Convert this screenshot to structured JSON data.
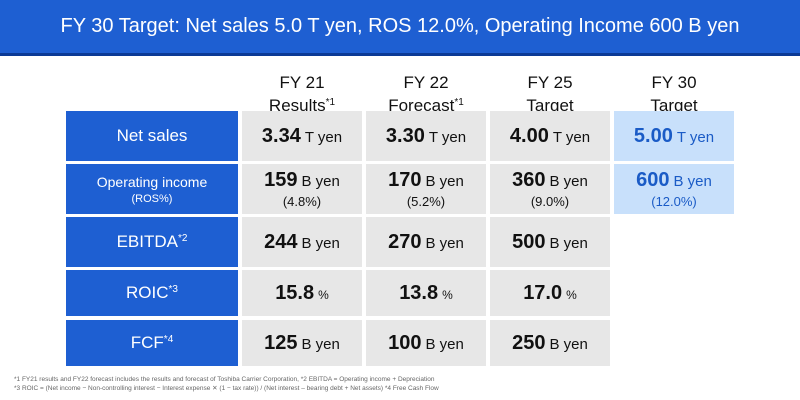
{
  "banner": "FY 30 Target: Net sales 5.0 T yen, ROS 12.0%, Operating Income 600 B yen",
  "columns": [
    {
      "line1": "FY 21",
      "line2": "Results",
      "mark": "*1"
    },
    {
      "line1": "FY 22",
      "line2": "Forecast",
      "mark": "*1"
    },
    {
      "line1": "FY 25",
      "line2": "Target",
      "mark": ""
    },
    {
      "line1": "FY 30",
      "line2": "Target",
      "mark": ""
    }
  ],
  "rows": [
    {
      "label": "Net sales",
      "mark": "",
      "sub": "",
      "cells": [
        {
          "value": "3.34",
          "unit": "T yen",
          "paren": ""
        },
        {
          "value": "3.30",
          "unit": "T yen",
          "paren": ""
        },
        {
          "value": "4.00",
          "unit": "T yen",
          "paren": ""
        },
        {
          "value": "5.00",
          "unit": "T yen",
          "paren": ""
        }
      ]
    },
    {
      "label": "Operating income",
      "mark": "",
      "sub": "(ROS%)",
      "cells": [
        {
          "value": "159",
          "unit": "B yen",
          "paren": "(4.8%)"
        },
        {
          "value": "170",
          "unit": "B yen",
          "paren": "(5.2%)"
        },
        {
          "value": "360",
          "unit": "B yen",
          "paren": "(9.0%)"
        },
        {
          "value": "600",
          "unit": "B yen",
          "paren": "(12.0%)"
        }
      ]
    },
    {
      "label": "EBITDA",
      "mark": "*2",
      "sub": "",
      "cells": [
        {
          "value": "244",
          "unit": "B yen",
          "paren": ""
        },
        {
          "value": "270",
          "unit": "B yen",
          "paren": ""
        },
        {
          "value": "500",
          "unit": "B yen",
          "paren": ""
        }
      ]
    },
    {
      "label": "ROIC",
      "mark": "*3",
      "sub": "",
      "cells": [
        {
          "value": "15.8",
          "unit": "%",
          "paren": ""
        },
        {
          "value": "13.8",
          "unit": "%",
          "paren": ""
        },
        {
          "value": "17.0",
          "unit": "%",
          "paren": ""
        }
      ]
    },
    {
      "label": "FCF",
      "mark": "*4",
      "sub": "",
      "cells": [
        {
          "value": "125",
          "unit": "B yen",
          "paren": ""
        },
        {
          "value": "100",
          "unit": "B yen",
          "paren": ""
        },
        {
          "value": "250",
          "unit": "B yen",
          "paren": ""
        }
      ]
    }
  ],
  "footnotes": [
    "*1 FY21 results and FY22 forecast includes the results and forecast of Toshiba Carrier Corporation, *2 EBITDA = Operating income + Depreciation",
    "*3 ROIC = (Net income − Non-controlling interest − Interest expense ✕ (1 − tax rate)) / (Net interest – bearing debt + Net assets) *4 Free Cash Flow"
  ],
  "colors": {
    "banner": "#1e5fd2",
    "label_bg": "#1e5fd2",
    "cell_bg": "#e7e7e7",
    "target_bg": "#c8e0fb",
    "target_text": "#1a5bc6"
  }
}
